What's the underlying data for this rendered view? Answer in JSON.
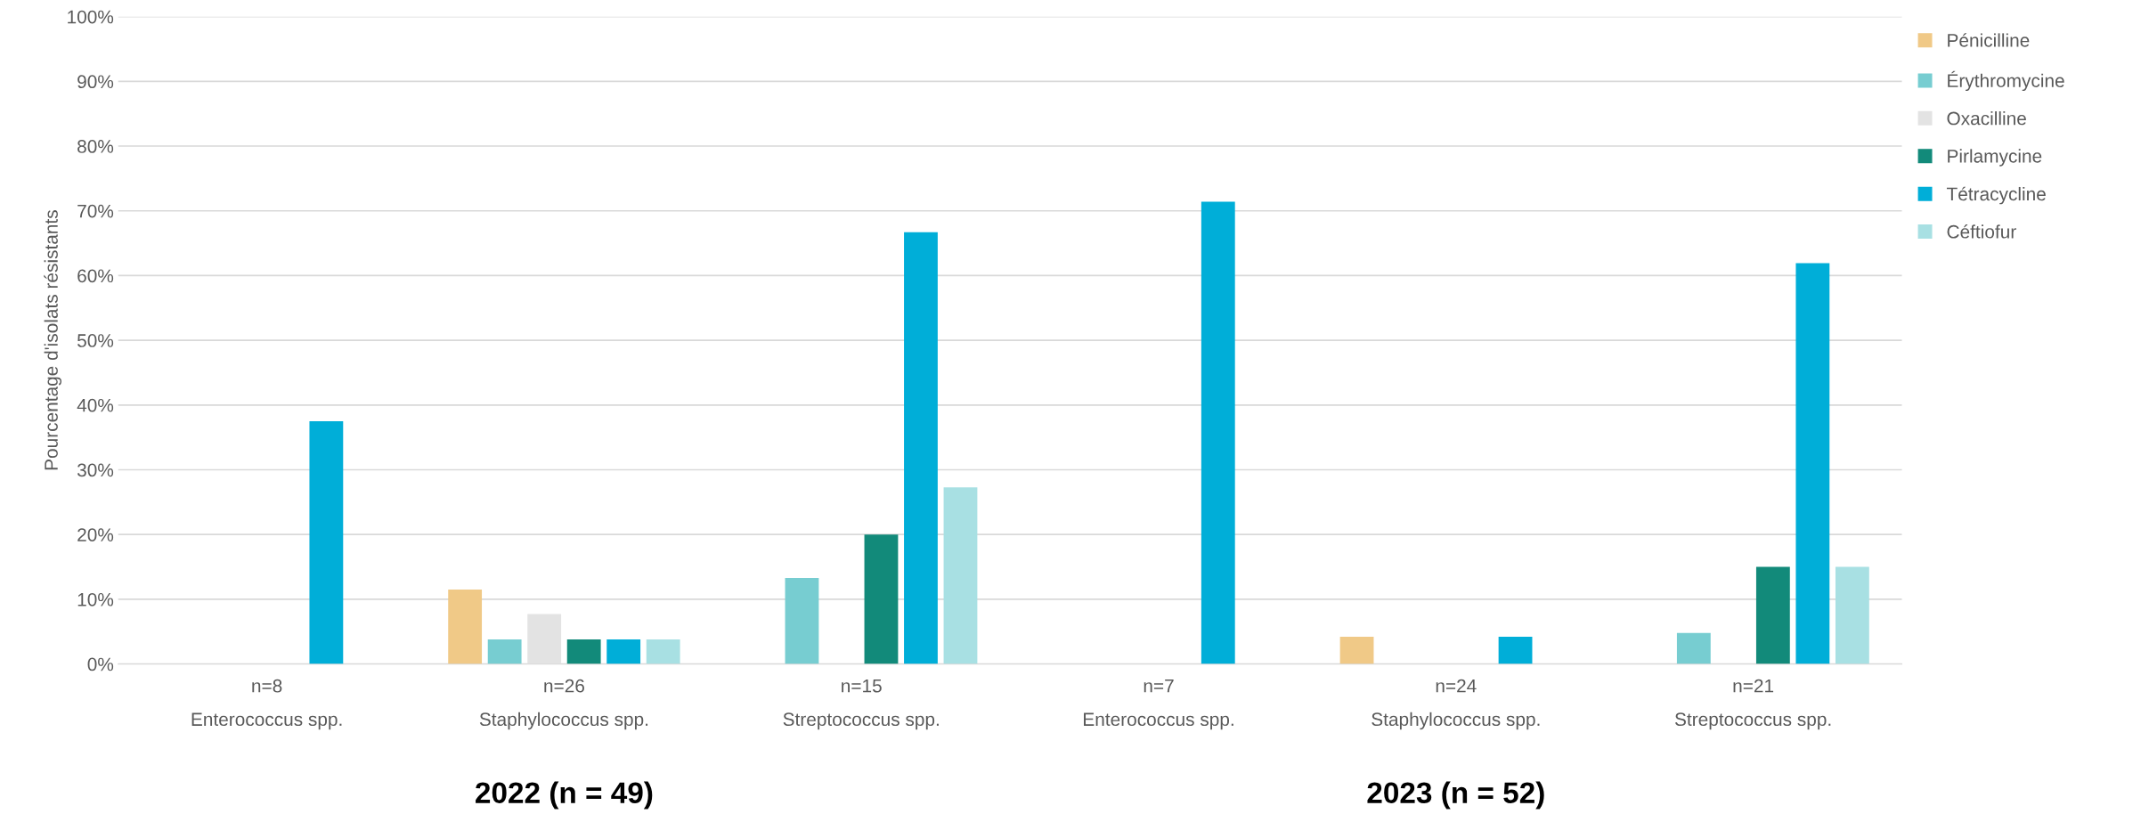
{
  "chart_data": {
    "type": "bar",
    "ylabel": "Pourcentage d'isolats résistants",
    "categories": [
      "n=8\nEnterococcus spp.",
      "n=26\nStaphylococcus spp.",
      "n=15\nStreptococcus spp.",
      "n=7\nEnterococcus spp.",
      "n=24\nStaphylococcus spp.",
      "n=21\nStreptococcus spp."
    ],
    "series": [
      {
        "name": "Pénicilline",
        "color": "#f0c987",
        "values": [
          null,
          11.5,
          null,
          null,
          4.2,
          null
        ]
      },
      {
        "name": "Érythromycine",
        "color": "#77cdd1",
        "values": [
          null,
          3.8,
          13.3,
          null,
          null,
          4.8
        ]
      },
      {
        "name": "Oxacilline",
        "color": "#e3e3e3",
        "values": [
          null,
          7.7,
          null,
          null,
          null,
          null
        ]
      },
      {
        "name": "Pirlamycine",
        "color": "#128a7a",
        "values": [
          null,
          3.8,
          20,
          null,
          null,
          15
        ]
      },
      {
        "name": "Tétracycline",
        "color": "#00aed8",
        "values": [
          37.5,
          3.8,
          66.7,
          71.4,
          4.2,
          61.9
        ]
      },
      {
        "name": "Céftiofur",
        "color": "#a8e0e3",
        "values": [
          null,
          3.8,
          27.3,
          null,
          null,
          15
        ]
      }
    ],
    "ylim": [
      0,
      100
    ],
    "yticks": [
      {
        "value": 0,
        "label": "0%"
      },
      {
        "value": 10,
        "label": "10%"
      },
      {
        "value": 20,
        "label": "20%"
      },
      {
        "value": 30,
        "label": "30%"
      },
      {
        "value": 40,
        "label": "40%"
      },
      {
        "value": 50,
        "label": "50%"
      },
      {
        "value": 60,
        "label": "60%"
      },
      {
        "value": 70,
        "label": "70%"
      },
      {
        "value": 80,
        "label": "80%"
      },
      {
        "value": 90,
        "label": "90%"
      },
      {
        "value": 100,
        "label": "100%"
      }
    ],
    "grid": "y",
    "legend": "top right",
    "annotations": [
      "2022 (n = 49)",
      "2023 (n = 52)"
    ]
  }
}
